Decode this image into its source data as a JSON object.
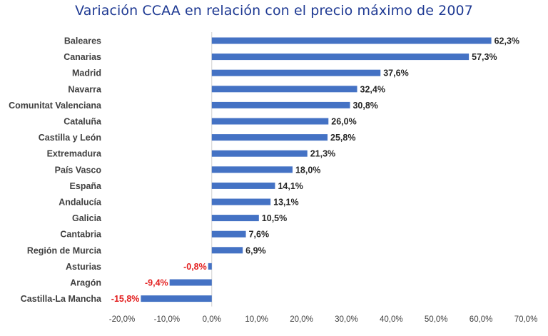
{
  "chart_data": {
    "type": "bar",
    "orientation": "horizontal",
    "title": "Variación CCAA en relación con el precio máximo de 2007",
    "xlabel": "",
    "ylabel": "",
    "xlim": [
      -20,
      70
    ],
    "x_ticks": [
      "-20,0%",
      "-10,0%",
      "0,0%",
      "10,0%",
      "20,0%",
      "30,0%",
      "40,0%",
      "50,0%",
      "60,0%",
      "70,0%"
    ],
    "grid": false,
    "bar_color": "#4472c4",
    "negative_label_color": "#e32020",
    "categories": [
      "Baleares",
      "Canarias",
      "Madrid",
      "Navarra",
      "Comunitat Valenciana",
      "Cataluña",
      "Castilla y León",
      "Extremadura",
      "País Vasco",
      "España",
      "Andalucía",
      "Galicia",
      "Cantabria",
      "Región de Murcia",
      "Asturias",
      "Aragón",
      "Castilla-La Mancha"
    ],
    "values": [
      62.3,
      57.3,
      37.6,
      32.4,
      30.8,
      26.0,
      25.8,
      21.3,
      18.0,
      14.1,
      13.1,
      10.5,
      7.6,
      6.9,
      -0.8,
      -9.4,
      -15.8
    ],
    "value_labels": [
      "62,3%",
      "57,3%",
      "37,6%",
      "32,4%",
      "30,8%",
      "26,0%",
      "25,8%",
      "21,3%",
      "18,0%",
      "14,1%",
      "13,1%",
      "10,5%",
      "7,6%",
      "6,9%",
      "-0,8%",
      "-9,4%",
      "-15,8%"
    ]
  }
}
